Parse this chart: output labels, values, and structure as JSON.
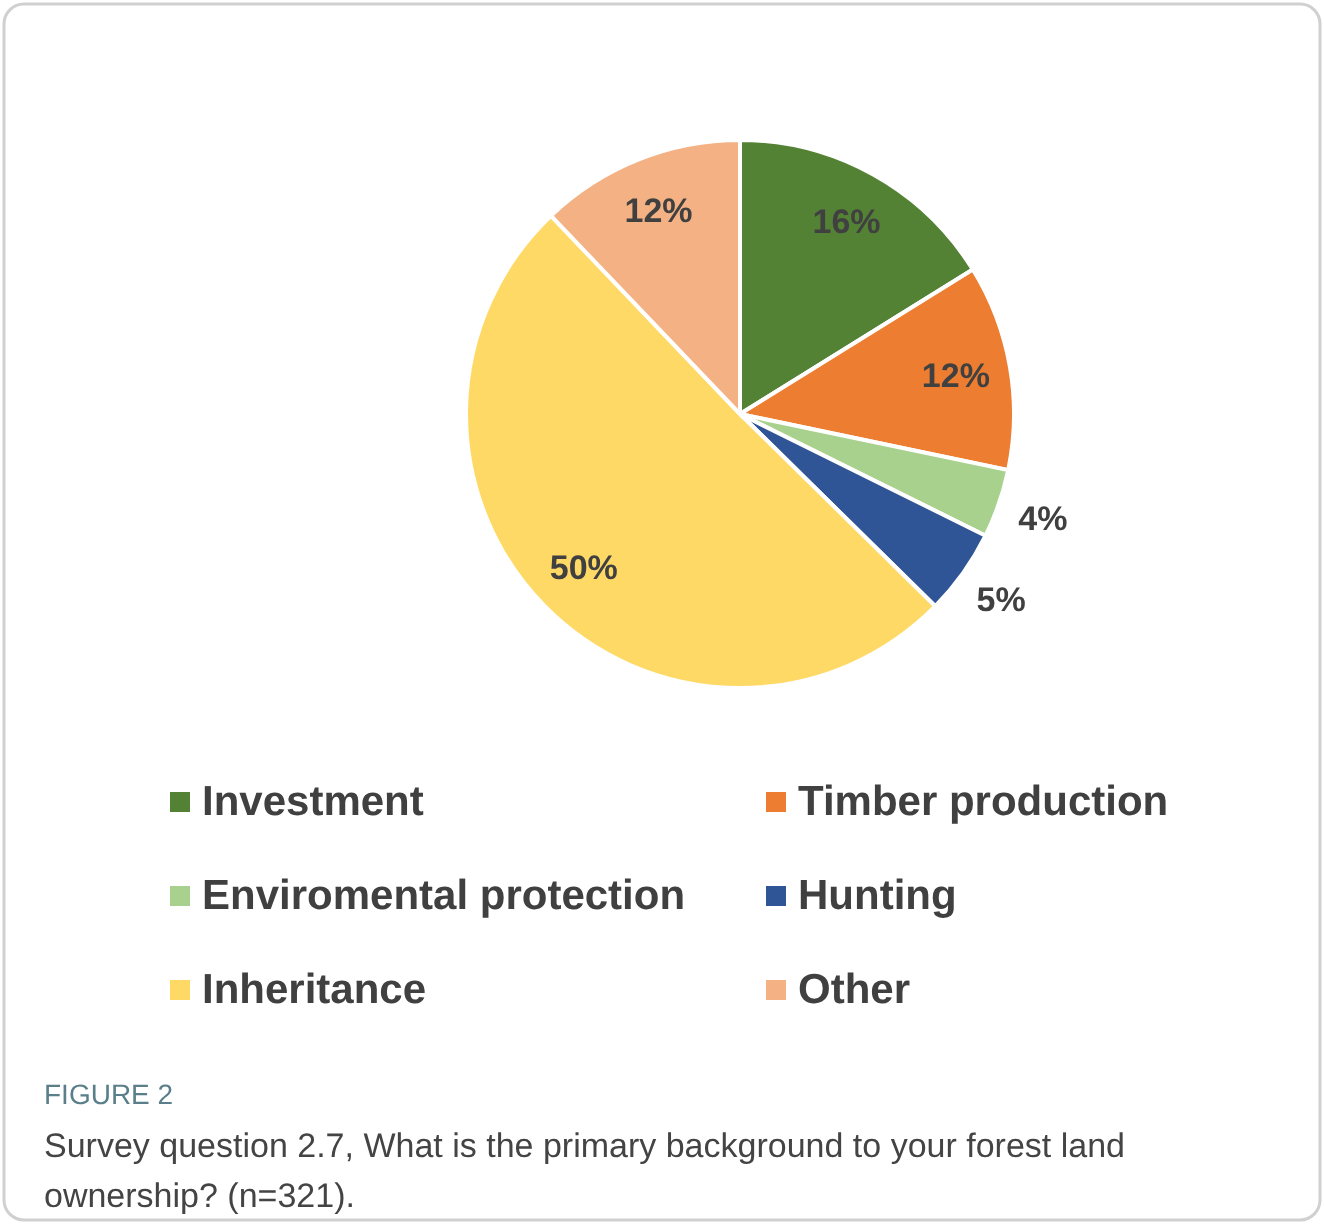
{
  "chart_data": {
    "type": "pie",
    "categories": [
      "Investment",
      "Timber production",
      "Enviromental protection",
      "Hunting",
      "Inheritance",
      "Other"
    ],
    "values": [
      16,
      12,
      4,
      5,
      50,
      12
    ],
    "colors": [
      "#548235",
      "#ed7d31",
      "#a9d18e",
      "#2f5597",
      "#ffd966",
      "#f4b183"
    ],
    "value_labels": [
      "16%",
      "12%",
      "4%",
      "5%",
      "50%",
      "12%"
    ],
    "legend": "bottom",
    "annotations": [
      "FIGURE 2",
      "Survey question 2.7, What is the primary background to your forest land ownership? (n=321)."
    ]
  }
}
